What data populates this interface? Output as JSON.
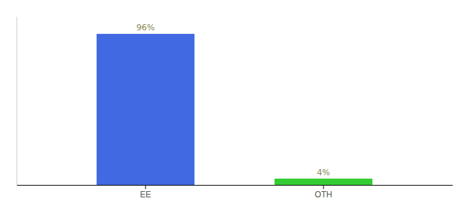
{
  "chart_data": {
    "type": "bar",
    "categories": [
      "EE",
      "OTH"
    ],
    "values": [
      96,
      4
    ],
    "value_labels": [
      "96%",
      "4%"
    ],
    "colors": [
      "#4169e1",
      "#33cc33"
    ],
    "ylim": [
      0,
      107
    ],
    "data_labels": true,
    "tick_labels": "x"
  }
}
